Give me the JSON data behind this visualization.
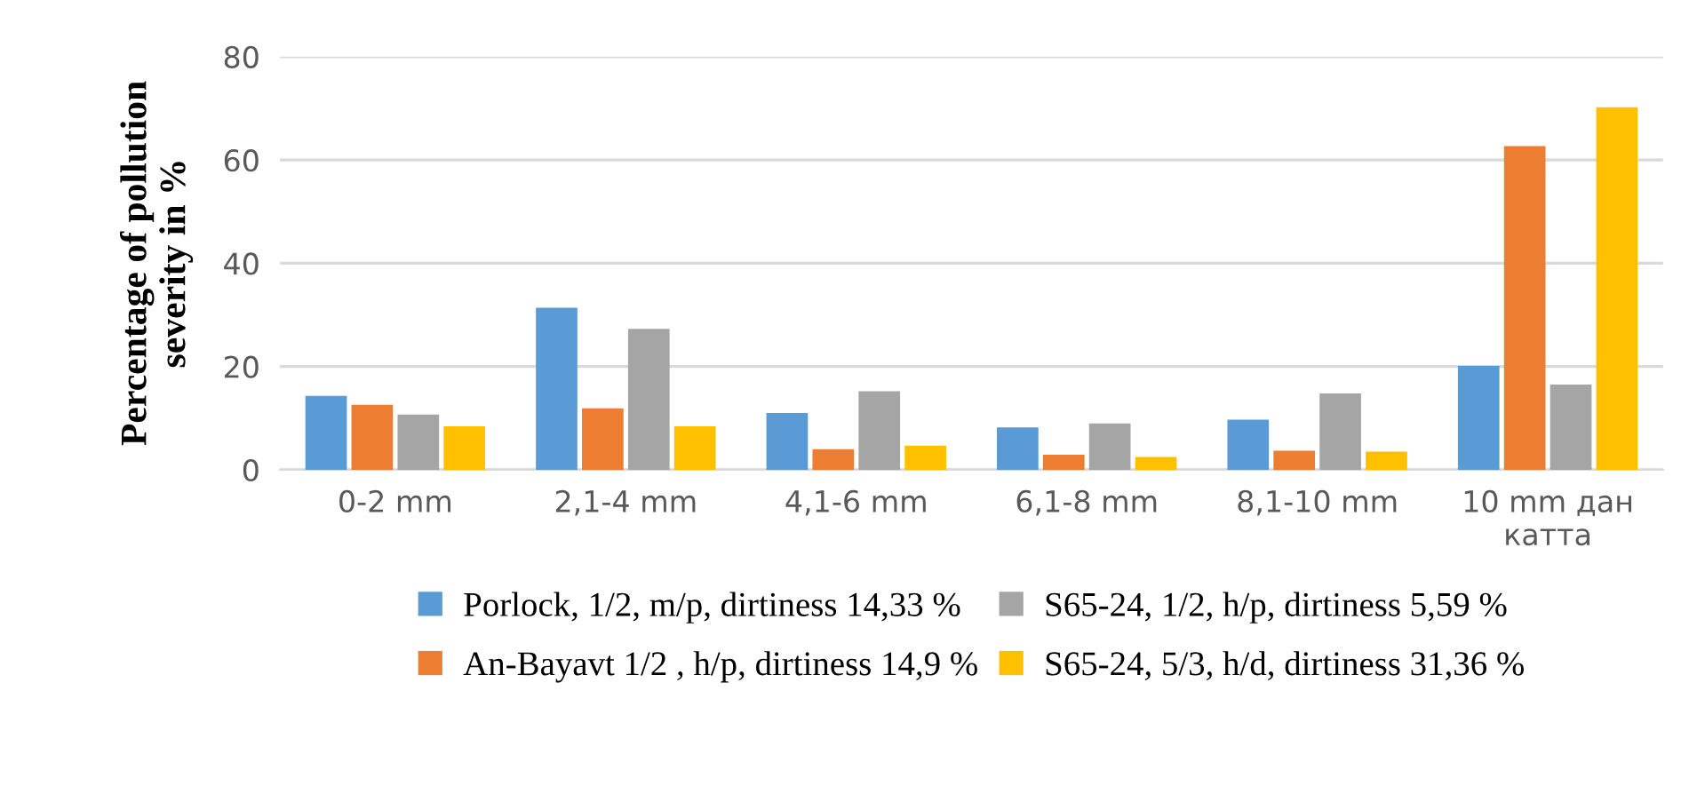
{
  "chart_data": {
    "type": "bar",
    "ylabel": "Percentage of pollution\nseverity in %",
    "categories": [
      "0-2 mm",
      "2,1-4 mm",
      "4,1-6 mm",
      "6,1-8 mm",
      "8,1-10 mm",
      "10 mm дан\nкатта"
    ],
    "series": [
      {
        "name": "Porlock, 1/2, m/p, dirtiness 14,33 %",
        "color": "#5b9bd5",
        "values": [
          14.3,
          31.4,
          11.0,
          8.2,
          9.7,
          20.1
        ]
      },
      {
        "name": "An-Bayavt 1/2 , h/p, dirtiness 14,9 %",
        "color": "#ed7d31",
        "values": [
          12.6,
          11.9,
          4.0,
          2.9,
          3.7,
          62.7
        ]
      },
      {
        "name": "S65-24, 1/2, h/p, dirtiness 5,59 %",
        "color": "#a5a5a5",
        "values": [
          10.7,
          27.3,
          15.2,
          9.0,
          14.8,
          16.5
        ]
      },
      {
        "name": "S65-24, 5/3, h/d, dirtiness 31,36 %",
        "color": "#ffc000",
        "values": [
          8.4,
          8.4,
          4.7,
          2.5,
          3.5,
          70.2
        ]
      }
    ],
    "ylim": [
      0,
      80
    ],
    "yticks": [
      0,
      20,
      40,
      60,
      80
    ],
    "grid": "y",
    "legend": "bottom"
  }
}
